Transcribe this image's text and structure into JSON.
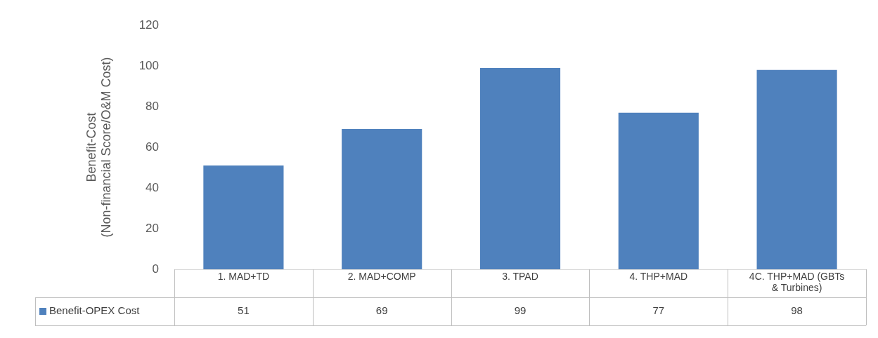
{
  "chart_data": {
    "type": "bar",
    "ylabel": "Benefit-Cost\n(Non-financial Score/O&M Cost)",
    "categories": [
      "1. MAD+TD",
      "2. MAD+COMP",
      "3. TPAD",
      "4. THP+MAD",
      "4C. THP+MAD (GBTs & Turbines)"
    ],
    "series": [
      {
        "name": "Benefit-OPEX Cost",
        "color": "#4f81bd",
        "values": [
          51,
          69,
          99,
          77,
          98
        ]
      }
    ],
    "ylim": [
      0,
      120
    ],
    "yticks": [
      0,
      20,
      40,
      60,
      80,
      100,
      120
    ],
    "grid": false,
    "data_labels": true
  }
}
